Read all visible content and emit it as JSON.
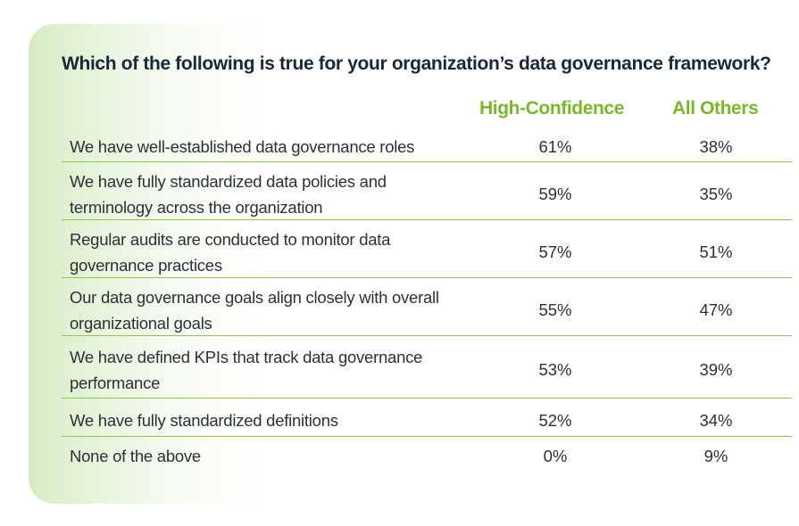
{
  "chart_data": {
    "type": "table",
    "title": "Which of the following is true for your organization’s data governance framework?",
    "columns": [
      "High-Confidence",
      "All Others"
    ],
    "rows": [
      {
        "label": "We have well-established data governance roles",
        "high_confidence": "61%",
        "all_others": "38%"
      },
      {
        "label": "We have fully standardized data policies and terminology across the organization",
        "high_confidence": "59%",
        "all_others": "35%"
      },
      {
        "label": "Regular audits are conducted to monitor data governance practices",
        "high_confidence": "57%",
        "all_others": "51%"
      },
      {
        "label": "Our data governance goals align closely with overall organizational goals",
        "high_confidence": "55%",
        "all_others": "47%"
      },
      {
        "label": "We have defined KPIs that track data governance performance",
        "high_confidence": "53%",
        "all_others": "39%"
      },
      {
        "label": "We have fully standardized definitions",
        "high_confidence": "52%",
        "all_others": "34%"
      },
      {
        "label": "None of the above",
        "high_confidence": "0%",
        "all_others": "9%"
      }
    ],
    "series": [
      {
        "name": "High-Confidence",
        "values": [
          61,
          59,
          57,
          55,
          53,
          52,
          0
        ]
      },
      {
        "name": "All Others",
        "values": [
          38,
          35,
          51,
          47,
          39,
          34,
          9
        ]
      }
    ]
  },
  "colors": {
    "accent": "#7ab62e",
    "divider": "#8ec653",
    "title": "#16283a",
    "text": "#2b3236",
    "card_tint": "#d6ecc4"
  }
}
